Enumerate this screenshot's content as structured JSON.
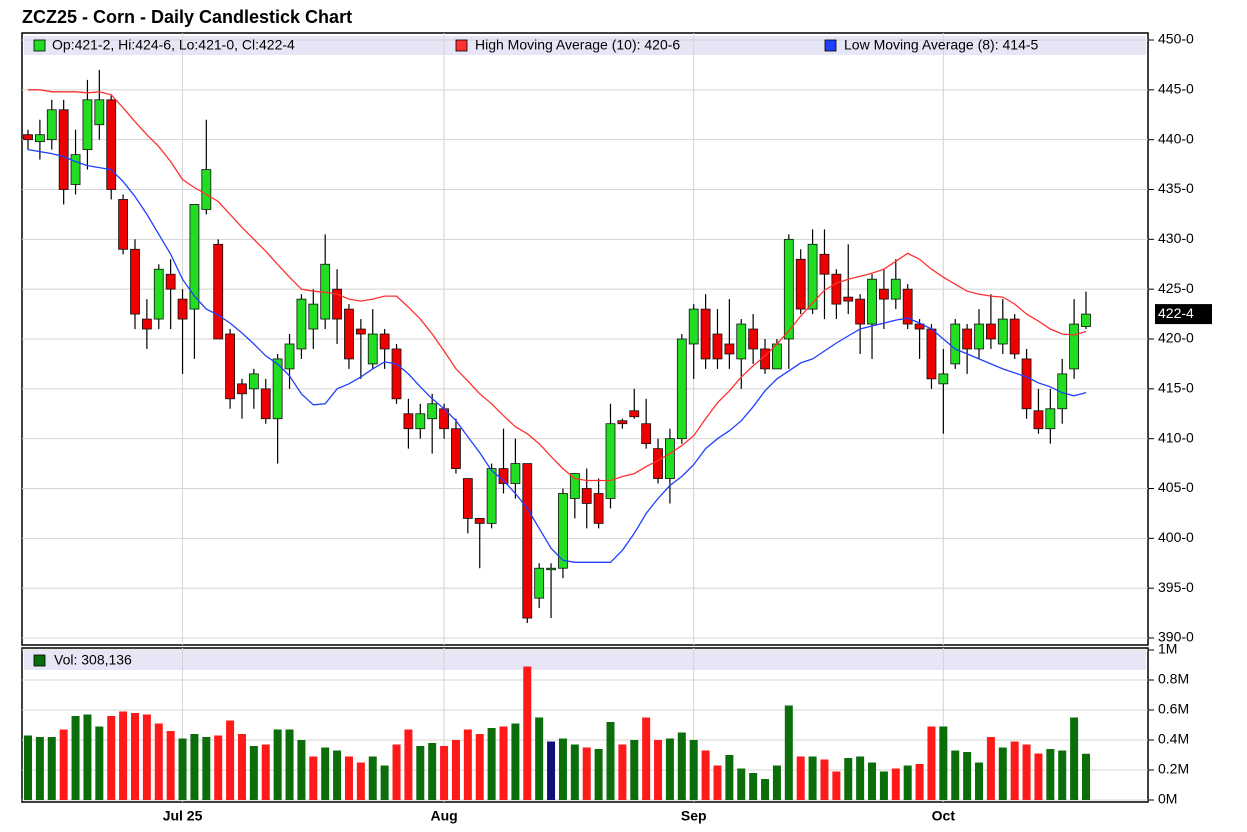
{
  "chart_data": [
    {
      "type": "candlestick",
      "title": "ZCZ25 - Corn - Daily Candlestick Chart",
      "legend_text": "Op:421-2, Hi:424-6, Lo:421-0, Cl:422-4",
      "up_color": "#22dd22",
      "down_color": "#ee0000",
      "categories": [
        null,
        null,
        null,
        null,
        null,
        null,
        null,
        null,
        null,
        null,
        null,
        null,
        null,
        "Jul 25",
        null,
        null,
        null,
        null,
        null,
        null,
        null,
        null,
        null,
        null,
        null,
        null,
        null,
        null,
        null,
        null,
        null,
        null,
        null,
        null,
        null,
        "Aug",
        null,
        null,
        null,
        null,
        null,
        null,
        null,
        null,
        null,
        null,
        null,
        null,
        null,
        null,
        null,
        null,
        null,
        null,
        null,
        null,
        "Sep",
        null,
        null,
        null,
        null,
        null,
        null,
        null,
        null,
        null,
        null,
        null,
        null,
        null,
        null,
        null,
        null,
        null,
        null,
        null,
        null,
        "Oct",
        null,
        null,
        null,
        null,
        null,
        null,
        null,
        null,
        null,
        null,
        null,
        null
      ],
      "open": [
        440.5,
        439.8,
        440,
        443,
        435.5,
        439,
        441.5,
        444,
        434,
        429,
        422,
        422,
        426.5,
        424,
        423,
        433,
        429.5,
        420.5,
        415.5,
        415,
        415,
        412,
        417,
        419,
        421,
        422,
        425,
        423,
        421,
        417.5,
        420.5,
        419,
        412.5,
        411,
        412,
        413,
        411,
        406,
        402,
        401.5,
        407,
        405.5,
        407.5,
        394,
        397,
        397,
        404,
        405,
        404.5,
        404,
        411.8,
        412.8,
        411.5,
        409,
        406,
        410,
        419.5,
        423,
        420.5,
        419.5,
        418,
        421,
        419,
        417,
        420,
        428,
        423,
        428.5,
        426.5,
        424.2,
        424,
        421.5,
        425,
        424,
        425,
        421.5,
        421,
        415.5,
        417.5,
        421,
        419,
        421.5,
        419.5,
        422,
        418,
        412.8,
        411,
        413,
        417,
        421.25
      ],
      "high": [
        441,
        442,
        444,
        444,
        441,
        446,
        447,
        444.5,
        434.5,
        430,
        424,
        427.5,
        428,
        425,
        433.5,
        442,
        430,
        421,
        416,
        417,
        416,
        418.5,
        420.5,
        424.5,
        425,
        430.5,
        427,
        423.5,
        422,
        423,
        421,
        419.5,
        414,
        413.5,
        414.5,
        413.5,
        412,
        406,
        402,
        407.5,
        411,
        410,
        407.5,
        397.5,
        397.5,
        405,
        406.5,
        407,
        406,
        413.5,
        412,
        415,
        414,
        410,
        411,
        420.5,
        423.5,
        424.5,
        423,
        424,
        422,
        422.5,
        420,
        420,
        430.5,
        429,
        431,
        431,
        427,
        429.5,
        424.5,
        426.5,
        427,
        428,
        425.5,
        422,
        421.5,
        419,
        422,
        421.5,
        423,
        424.5,
        424,
        422.5,
        419,
        415,
        415,
        418,
        424,
        424.75
      ],
      "low": [
        439,
        438,
        439,
        433.5,
        434.5,
        437,
        440,
        434,
        428.5,
        421,
        419,
        421,
        421,
        416.5,
        418,
        432.5,
        420,
        413,
        412,
        413,
        411.5,
        407.5,
        415,
        418,
        419,
        421,
        419.5,
        417,
        416,
        417,
        417,
        413.5,
        409,
        410,
        408.5,
        410,
        406.5,
        400.5,
        397,
        401,
        404.5,
        404,
        391.5,
        393,
        392,
        396,
        402,
        401,
        401,
        403,
        411,
        412,
        409,
        405.5,
        403.5,
        409.5,
        416,
        417,
        417,
        417,
        415,
        417.5,
        416.5,
        417,
        417,
        422.5,
        422.5,
        422,
        422,
        422.5,
        418.5,
        418,
        421,
        423,
        421,
        418,
        415,
        410.5,
        417,
        416.5,
        418,
        419,
        418.5,
        418,
        412,
        410.5,
        409.5,
        411.5,
        416,
        421
      ],
      "close": [
        440,
        440.5,
        443,
        435,
        438.5,
        444,
        444,
        435,
        429,
        422.5,
        421,
        427,
        425,
        422,
        433.5,
        437,
        420,
        414,
        414.5,
        416.5,
        412,
        418,
        419.5,
        424,
        423.5,
        427.5,
        422,
        418,
        420.5,
        420.5,
        419,
        414,
        411,
        412.5,
        413.5,
        411,
        407,
        402,
        401.5,
        407,
        405.5,
        407.5,
        392,
        397,
        397,
        404.5,
        406.5,
        403.5,
        401.5,
        411.5,
        411.5,
        412.2,
        409.5,
        406,
        410,
        420,
        423,
        418,
        418,
        418.5,
        421.5,
        419,
        417,
        419.5,
        430,
        423,
        429.5,
        426.5,
        423.5,
        423.8,
        421.5,
        426,
        424,
        426,
        421.5,
        421,
        416,
        416.5,
        421.5,
        419,
        421.5,
        420,
        422,
        418.5,
        413,
        411,
        413,
        416.5,
        421.5,
        422.5
      ],
      "series": [
        {
          "name": "High Moving Average (10): 420-6",
          "color": "#ff3030",
          "values": [
            445,
            445,
            444.8,
            444.8,
            444.8,
            444.7,
            444.8,
            444.5,
            443.2,
            441.8,
            440.5,
            439.3,
            437.8,
            436,
            435.2,
            434.5,
            433.8,
            432.5,
            431.2,
            430,
            428.8,
            427.5,
            426.2,
            425,
            424.8,
            424.7,
            424.5,
            424,
            423.8,
            424,
            424.3,
            424.3,
            423.2,
            422,
            420.5,
            418.8,
            417,
            415.8,
            414.5,
            413.5,
            412.3,
            411.2,
            410.5,
            409.5,
            408.2,
            407,
            406,
            405.8,
            405.8,
            405.8,
            406.2,
            406.5,
            407.2,
            407.8,
            408.5,
            409.3,
            410.3,
            412,
            413.6,
            414.8,
            416.2,
            417.3,
            418.3,
            419.5,
            420.8,
            422.3,
            423.6,
            424.9,
            425.6,
            426,
            426.3,
            426.6,
            427,
            427.8,
            428.6,
            428,
            427,
            426.2,
            425.5,
            424.8,
            424.5,
            424.3,
            424.2,
            423.5,
            422.5,
            421.8,
            421,
            420.5,
            420.4,
            420.75
          ]
        },
        {
          "name": "Low Moving Average (8): 414-5",
          "color": "#2040ff",
          "values": [
            439,
            438.8,
            438.6,
            438.3,
            437.8,
            437.4,
            437.2,
            437,
            435.8,
            434.3,
            432.5,
            430.5,
            428.5,
            426,
            424.3,
            423,
            422.4,
            421.6,
            420.6,
            419.5,
            418.3,
            417.5,
            416.3,
            414.5,
            413.4,
            413.5,
            415,
            415.5,
            416.2,
            417,
            417.7,
            417.5,
            416.5,
            415.2,
            414,
            413,
            411.8,
            410.2,
            408.6,
            406.8,
            405.8,
            404.5,
            403,
            401,
            399,
            397.8,
            397.6,
            397.6,
            397.6,
            397.6,
            398.8,
            400.5,
            402.5,
            404,
            405.3,
            406.2,
            407.4,
            409,
            410,
            410.8,
            411.8,
            413.2,
            414.8,
            416,
            416.8,
            417.6,
            418,
            418.8,
            419.6,
            420.3,
            421,
            421.3,
            421.6,
            421.9,
            422.1,
            421.6,
            421,
            420,
            419,
            418.5,
            418,
            417.5,
            417,
            416.6,
            416.2,
            415.6,
            415.2,
            414.6,
            414.3,
            414.625
          ]
        }
      ],
      "last_price": {
        "value": 422.5,
        "label": "422-4"
      },
      "ylim": [
        390,
        450
      ],
      "yticks": [
        {
          "value": 450,
          "label": "450-0"
        },
        {
          "value": 445,
          "label": "445-0"
        },
        {
          "value": 440,
          "label": "440-0"
        },
        {
          "value": 435,
          "label": "435-0"
        },
        {
          "value": 430,
          "label": "430-0"
        },
        {
          "value": 425,
          "label": "425-0"
        },
        {
          "value": 420,
          "label": "420-0"
        },
        {
          "value": 415,
          "label": "415-0"
        },
        {
          "value": 410,
          "label": "410-0"
        },
        {
          "value": 405,
          "label": "405-0"
        },
        {
          "value": 400,
          "label": "400-0"
        },
        {
          "value": 395,
          "label": "395-0"
        },
        {
          "value": 390,
          "label": "390-0"
        }
      ],
      "grid": true
    },
    {
      "type": "bar",
      "series": [
        {
          "name": "Vol: 308,136",
          "color": "#0b6e0b",
          "values": [
            430000,
            420000,
            420000,
            470000,
            560000,
            570000,
            490000,
            560000,
            590000,
            580000,
            570000,
            510000,
            460000,
            410000,
            440000,
            420000,
            430000,
            530000,
            440000,
            360000,
            370000,
            470000,
            470000,
            400000,
            290000,
            350000,
            330000,
            290000,
            250000,
            290000,
            230000,
            370000,
            470000,
            360000,
            380000,
            360000,
            400000,
            470000,
            440000,
            480000,
            490000,
            510000,
            890000,
            550000,
            390000,
            410000,
            370000,
            350000,
            340000,
            520000,
            370000,
            400000,
            550000,
            400000,
            410000,
            450000,
            400000,
            330000,
            230000,
            300000,
            210000,
            180000,
            140000,
            230000,
            630000,
            290000,
            290000,
            270000,
            190000,
            280000,
            290000,
            250000,
            190000,
            210000,
            230000,
            240000,
            490000,
            490000,
            330000,
            320000,
            250000,
            420000,
            350000,
            390000,
            370000,
            310000,
            340000,
            330000,
            550000,
            308136
          ],
          "colors": [
            "#0b6e0b",
            "#0b6e0b",
            "#0b6e0b",
            "#ff1a1a",
            "#0b6e0b",
            "#0b6e0b",
            "#0b6e0b",
            "#ff1a1a",
            "#ff1a1a",
            "#ff1a1a",
            "#ff1a1a",
            "#ff1a1a",
            "#ff1a1a",
            "#0b6e0b",
            "#0b6e0b",
            "#0b6e0b",
            "#ff1a1a",
            "#ff1a1a",
            "#ff1a1a",
            "#0b6e0b",
            "#ff1a1a",
            "#0b6e0b",
            "#0b6e0b",
            "#0b6e0b",
            "#ff1a1a",
            "#0b6e0b",
            "#0b6e0b",
            "#ff1a1a",
            "#ff1a1a",
            "#0b6e0b",
            "#0b6e0b",
            "#ff1a1a",
            "#ff1a1a",
            "#0b6e0b",
            "#0b6e0b",
            "#ff1a1a",
            "#ff1a1a",
            "#ff1a1a",
            "#ff1a1a",
            "#0b6e0b",
            "#ff1a1a",
            "#0b6e0b",
            "#ff1a1a",
            "#0b6e0b",
            "#10107a",
            "#0b6e0b",
            "#0b6e0b",
            "#ff1a1a",
            "#0b6e0b",
            "#0b6e0b",
            "#ff1a1a",
            "#0b6e0b",
            "#ff1a1a",
            "#ff1a1a",
            "#0b6e0b",
            "#0b6e0b",
            "#0b6e0b",
            "#ff1a1a",
            "#ff1a1a",
            "#0b6e0b",
            "#0b6e0b",
            "#0b6e0b",
            "#0b6e0b",
            "#0b6e0b",
            "#0b6e0b",
            "#ff1a1a",
            "#0b6e0b",
            "#ff1a1a",
            "#ff1a1a",
            "#0b6e0b",
            "#0b6e0b",
            "#0b6e0b",
            "#0b6e0b",
            "#ff1a1a",
            "#0b6e0b",
            "#ff1a1a",
            "#ff1a1a",
            "#0b6e0b",
            "#0b6e0b",
            "#0b6e0b",
            "#0b6e0b",
            "#ff1a1a",
            "#0b6e0b",
            "#ff1a1a",
            "#ff1a1a",
            "#ff1a1a",
            "#0b6e0b",
            "#0b6e0b",
            "#0b6e0b",
            "#0b6e0b"
          ]
        }
      ],
      "ylim": [
        0,
        1000000
      ],
      "yticks": [
        {
          "value": 0,
          "label": "0M"
        },
        {
          "value": 200000,
          "label": "0.2M"
        },
        {
          "value": 400000,
          "label": "0.4M"
        },
        {
          "value": 600000,
          "label": "0.6M"
        },
        {
          "value": 800000,
          "label": "0.8M"
        },
        {
          "value": 1000000,
          "label": "1M"
        }
      ]
    }
  ]
}
